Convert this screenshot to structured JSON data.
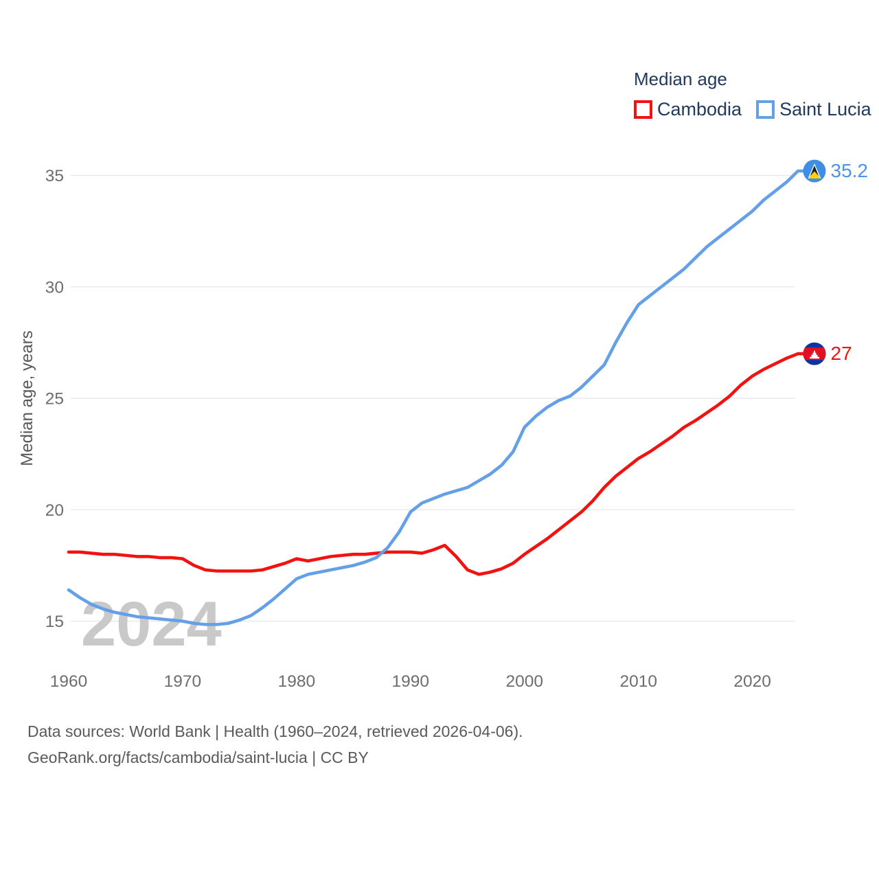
{
  "legend": {
    "title": "Median age",
    "items": [
      {
        "label": "Cambodia",
        "color": "#f2120f"
      },
      {
        "label": "Saint Lucia",
        "color": "#64a0e8"
      }
    ]
  },
  "watermark": "2024",
  "footer": {
    "line1": "Data sources: World Bank | Health (1960–2024, retrieved 2026-04-06).",
    "line2": "GeoRank.org/facts/cambodia/saint-lucia | CC BY"
  },
  "chart_data": {
    "type": "line",
    "title": "Median age",
    "xlabel": "",
    "ylabel": "Median age, years",
    "xlim": [
      1960,
      2024
    ],
    "ylim": [
      13.8,
      36.4
    ],
    "grid": true,
    "legend_position": "top-right",
    "xticks": [
      1960,
      1970,
      1980,
      1990,
      2000,
      2010,
      2020
    ],
    "yticks": [
      15,
      20,
      25,
      30,
      35
    ],
    "x": [
      1960,
      1961,
      1962,
      1963,
      1964,
      1965,
      1966,
      1967,
      1968,
      1969,
      1970,
      1971,
      1972,
      1973,
      1974,
      1975,
      1976,
      1977,
      1978,
      1979,
      1980,
      1981,
      1982,
      1983,
      1984,
      1985,
      1986,
      1987,
      1988,
      1989,
      1990,
      1991,
      1992,
      1993,
      1994,
      1995,
      1996,
      1997,
      1998,
      1999,
      2000,
      2001,
      2002,
      2003,
      2004,
      2005,
      2006,
      2007,
      2008,
      2009,
      2010,
      2011,
      2012,
      2013,
      2014,
      2015,
      2016,
      2017,
      2018,
      2019,
      2020,
      2021,
      2022,
      2023,
      2024
    ],
    "series": [
      {
        "name": "Cambodia",
        "color": "#f2120f",
        "label_color": "#f2120f",
        "flag": "cambodia",
        "end_label": "27",
        "values": [
          18.1,
          18.1,
          18.05,
          18.0,
          18.0,
          17.95,
          17.9,
          17.9,
          17.85,
          17.85,
          17.8,
          17.5,
          17.3,
          17.25,
          17.25,
          17.25,
          17.25,
          17.3,
          17.45,
          17.6,
          17.8,
          17.7,
          17.8,
          17.9,
          17.95,
          18.0,
          18.0,
          18.05,
          18.1,
          18.1,
          18.1,
          18.05,
          18.2,
          18.4,
          17.9,
          17.3,
          17.1,
          17.2,
          17.35,
          17.6,
          18.0,
          18.35,
          18.7,
          19.1,
          19.5,
          19.9,
          20.4,
          21.0,
          21.5,
          21.9,
          22.3,
          22.6,
          22.95,
          23.3,
          23.7,
          24.0,
          24.35,
          24.7,
          25.1,
          25.6,
          26.0,
          26.3,
          26.55,
          26.8,
          27.0
        ]
      },
      {
        "name": "Saint Lucia",
        "color": "#64a0e8",
        "label_color": "#4a93e8",
        "flag": "saint-lucia",
        "end_label": "35.2",
        "values": [
          16.4,
          16.05,
          15.75,
          15.55,
          15.4,
          15.3,
          15.2,
          15.15,
          15.1,
          15.05,
          15.0,
          14.9,
          14.85,
          14.85,
          14.9,
          15.05,
          15.25,
          15.6,
          16.0,
          16.45,
          16.9,
          17.1,
          17.2,
          17.3,
          17.4,
          17.5,
          17.65,
          17.85,
          18.3,
          19.0,
          19.9,
          20.3,
          20.5,
          20.7,
          20.85,
          21.0,
          21.3,
          21.6,
          22.0,
          22.6,
          23.7,
          24.2,
          24.6,
          24.9,
          25.1,
          25.5,
          26.0,
          26.5,
          27.5,
          28.4,
          29.2,
          29.6,
          30.0,
          30.4,
          30.8,
          31.3,
          31.8,
          32.2,
          32.6,
          33.0,
          33.4,
          33.9,
          34.3,
          34.7,
          35.2
        ]
      }
    ]
  }
}
